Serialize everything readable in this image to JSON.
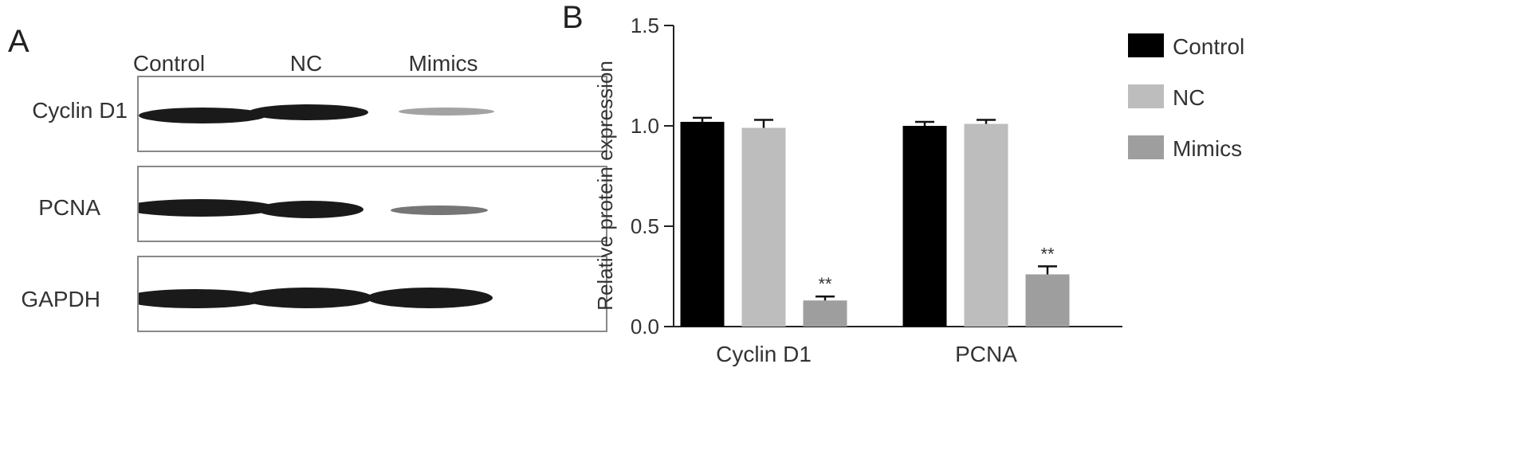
{
  "panel_a": {
    "letter": "A",
    "lanes": [
      "Control",
      "NC",
      "Mimics"
    ],
    "rows": [
      {
        "label": "Cyclin D1",
        "intensity": [
          1.0,
          0.95,
          0.4
        ]
      },
      {
        "label": "PCNA",
        "intensity": [
          1.0,
          1.0,
          0.55
        ]
      },
      {
        "label": "GAPDH",
        "intensity": [
          1.0,
          1.0,
          1.0
        ]
      }
    ],
    "band_color": "#1a1a1a",
    "frame_color": "#888888"
  },
  "panel_b": {
    "letter": "B"
  },
  "chart_data": {
    "type": "bar",
    "categories": [
      "Cyclin D1",
      "PCNA"
    ],
    "series": [
      {
        "name": "Control",
        "values": [
          1.02,
          1.0
        ],
        "errors": [
          0.02,
          0.02
        ],
        "color": "#000000",
        "annotations": [
          "",
          ""
        ]
      },
      {
        "name": "NC",
        "values": [
          0.99,
          1.01
        ],
        "errors": [
          0.04,
          0.02
        ],
        "color": "#bdbdbd",
        "annotations": [
          "",
          ""
        ]
      },
      {
        "name": "Mimics",
        "values": [
          0.13,
          0.26
        ],
        "errors": [
          0.02,
          0.04
        ],
        "color": "#9e9e9e",
        "annotations": [
          "**",
          "**"
        ]
      }
    ],
    "xlabel": "",
    "ylabel": "Relative protein expression",
    "ylim": [
      0,
      1.5
    ],
    "yticks": [
      "0.0",
      "0.5",
      "1.0",
      "1.5"
    ],
    "grid": false,
    "legend_position": "top-right"
  }
}
